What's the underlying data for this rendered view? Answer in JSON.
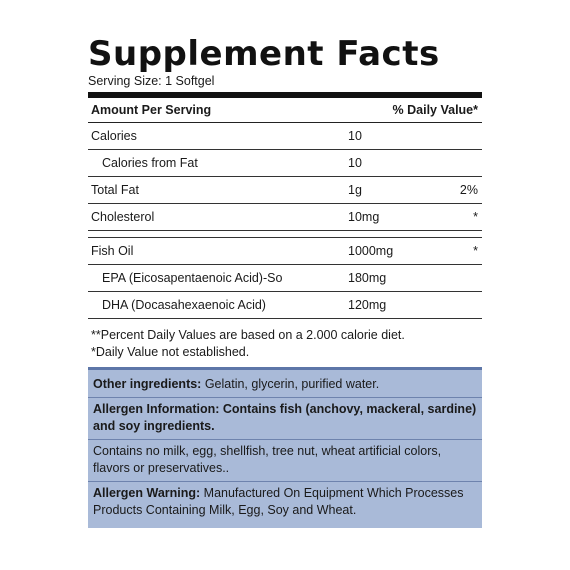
{
  "title": "Supplement Facts",
  "serving_size": "Serving Size: 1 Softgel",
  "header": {
    "amount": "Amount Per Serving",
    "daily_value": "% Daily Value*"
  },
  "rows": [
    {
      "name": "Calories",
      "amount": "10",
      "dv": ""
    },
    {
      "name": "Calories from Fat",
      "amount": "10",
      "dv": ""
    },
    {
      "name": "Total Fat",
      "amount": "1g",
      "dv": "2%"
    },
    {
      "name": "Cholesterol",
      "amount": "10mg",
      "dv": "*"
    },
    {
      "name": "Fish Oil",
      "amount": "1000mg",
      "dv": "*"
    },
    {
      "name": "EPA (Eicosapentaenoic Acid)-So",
      "amount": "180mg",
      "dv": ""
    },
    {
      "name": "DHA (Docasahexaenoic Acid)",
      "amount": "120mg",
      "dv": ""
    }
  ],
  "footnotes": [
    "**Percent Daily Values are based on a 2.000 calorie diet.",
    "*Daily Value not established."
  ],
  "info": {
    "other_label": "Other ingredients:",
    "other_text": " Gelatin, glycerin, purified water.",
    "allergen_info": "Allergen Information: Contains fish (anchovy, mackeral, sardine) and soy ingredients.",
    "contains_no": "Contains no milk, egg, shellfish, tree nut, wheat artificial colors, flavors or preservatives..",
    "warning_label": "Allergen Warning:",
    "warning_text": " Manufactured On Equipment Which Processes Products Containing Milk, Egg, Soy and Wheat."
  },
  "colors": {
    "info_bg": "#a9bad8",
    "info_border": "#5d76a8"
  }
}
